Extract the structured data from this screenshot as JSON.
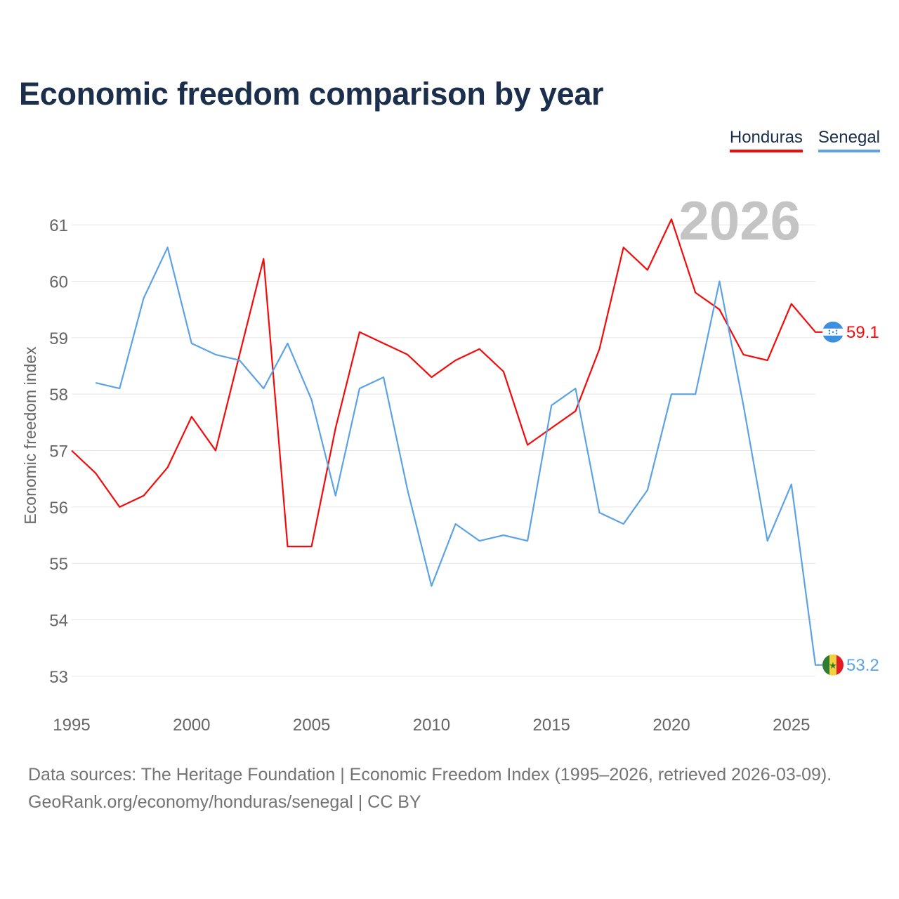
{
  "title": "Economic freedom comparison by year",
  "legend": [
    {
      "name": "Honduras",
      "color": "#f50a0a"
    },
    {
      "name": "Senegal",
      "color": "#5ba3e6"
    }
  ],
  "source": {
    "line1": "Data sources: The Heritage Foundation | Economic Freedom Index (1995–2026, retrieved 2026-03-09).",
    "line2": "GeoRank.org/economy/honduras/senegal | CC BY"
  },
  "chart_data": {
    "type": "line",
    "title": "Economic freedom comparison by year",
    "xlabel": "",
    "ylabel": "Economic freedom index",
    "year_label": "2026",
    "xlim": [
      1995,
      2026
    ],
    "ylim": [
      52.6,
      61.5
    ],
    "x_ticks": [
      1995,
      2000,
      2005,
      2010,
      2015,
      2020,
      2025
    ],
    "y_ticks": [
      53,
      54,
      55,
      56,
      57,
      58,
      59,
      60,
      61
    ],
    "grid": true,
    "legend_position": "top-right",
    "series": [
      {
        "name": "Honduras",
        "color": "#f50a0a",
        "end_label": "59.1",
        "flag": "honduras-flag-icon",
        "x": [
          1995,
          1996,
          1997,
          1998,
          1999,
          2000,
          2001,
          2002,
          2003,
          2004,
          2005,
          2006,
          2007,
          2008,
          2009,
          2010,
          2011,
          2012,
          2013,
          2014,
          2015,
          2016,
          2017,
          2018,
          2019,
          2020,
          2021,
          2022,
          2023,
          2024,
          2025,
          2026
        ],
        "values": [
          57.0,
          56.6,
          56.0,
          56.2,
          56.7,
          57.6,
          57.0,
          58.7,
          60.4,
          55.3,
          55.3,
          57.4,
          59.1,
          58.9,
          58.7,
          58.3,
          58.6,
          58.8,
          58.4,
          57.1,
          57.4,
          57.7,
          58.8,
          60.6,
          60.2,
          61.1,
          59.8,
          59.5,
          58.7,
          58.6,
          59.6,
          59.1
        ]
      },
      {
        "name": "Senegal",
        "color": "#5ba3e6",
        "end_label": "53.2",
        "flag": "senegal-flag-icon",
        "x": [
          1996,
          1997,
          1998,
          1999,
          2000,
          2001,
          2002,
          2003,
          2004,
          2005,
          2006,
          2007,
          2008,
          2009,
          2010,
          2011,
          2012,
          2013,
          2014,
          2015,
          2016,
          2017,
          2018,
          2019,
          2020,
          2021,
          2022,
          2023,
          2024,
          2025,
          2026
        ],
        "values": [
          58.2,
          58.1,
          59.7,
          60.6,
          58.9,
          58.7,
          58.6,
          58.1,
          58.9,
          57.9,
          56.2,
          58.1,
          58.3,
          56.3,
          54.6,
          55.7,
          55.4,
          55.5,
          55.4,
          57.8,
          58.1,
          55.9,
          55.7,
          56.3,
          58.0,
          58.0,
          60.0,
          57.8,
          55.4,
          56.4,
          53.2
        ]
      }
    ]
  }
}
